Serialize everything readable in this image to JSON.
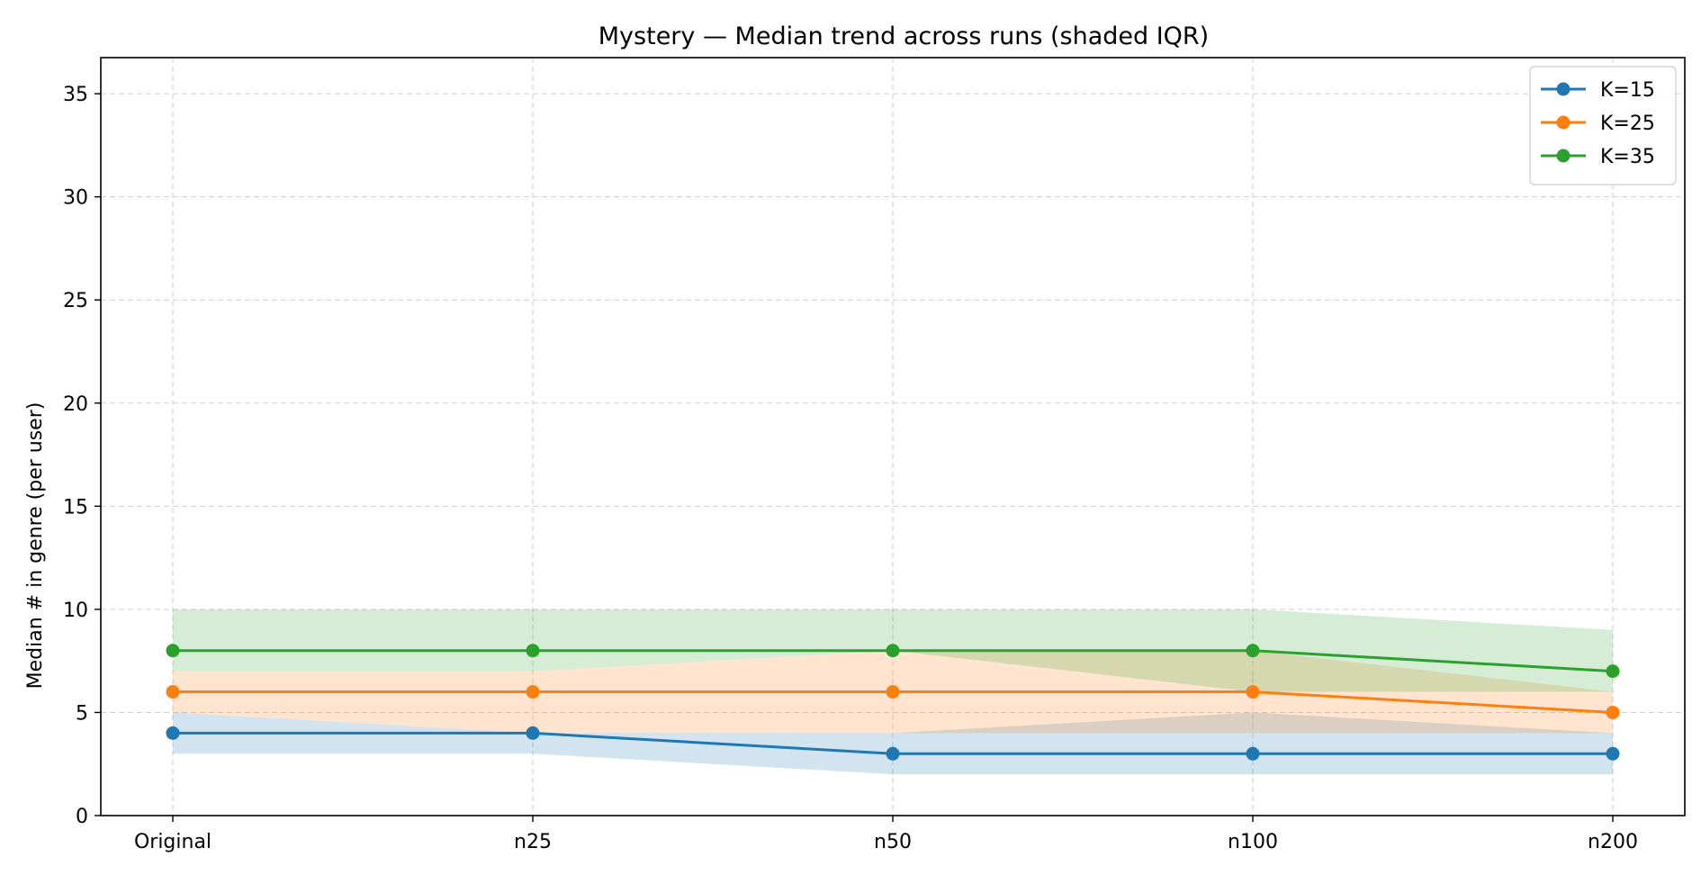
{
  "chart_data": {
    "type": "line",
    "title": "Mystery — Median trend across runs (shaded IQR)",
    "xlabel": "",
    "ylabel": "Median # in genre (per user)",
    "categories": [
      "Original",
      "n25",
      "n50",
      "n100",
      "n200"
    ],
    "ylim": [
      0,
      36.75
    ],
    "yticks": [
      0,
      5,
      10,
      15,
      20,
      25,
      30,
      35
    ],
    "grid": true,
    "legend_position": "top-right",
    "series": [
      {
        "name": "K=15",
        "color": "#1f77b4",
        "values": [
          4,
          4,
          3,
          3,
          3
        ],
        "iqr_low": [
          3,
          3,
          2,
          2,
          2
        ],
        "iqr_high": [
          5,
          4,
          4,
          5,
          4
        ]
      },
      {
        "name": "K=25",
        "color": "#ff7f0e",
        "values": [
          6,
          6,
          6,
          6,
          5
        ],
        "iqr_low": [
          5,
          4,
          4,
          4,
          4
        ],
        "iqr_high": [
          7,
          7,
          8,
          8,
          6
        ]
      },
      {
        "name": "K=35",
        "color": "#2ca02c",
        "values": [
          8,
          8,
          8,
          8,
          7
        ],
        "iqr_low": [
          7,
          7,
          8,
          6,
          6
        ],
        "iqr_high": [
          10,
          10,
          10,
          10,
          9
        ]
      }
    ]
  }
}
